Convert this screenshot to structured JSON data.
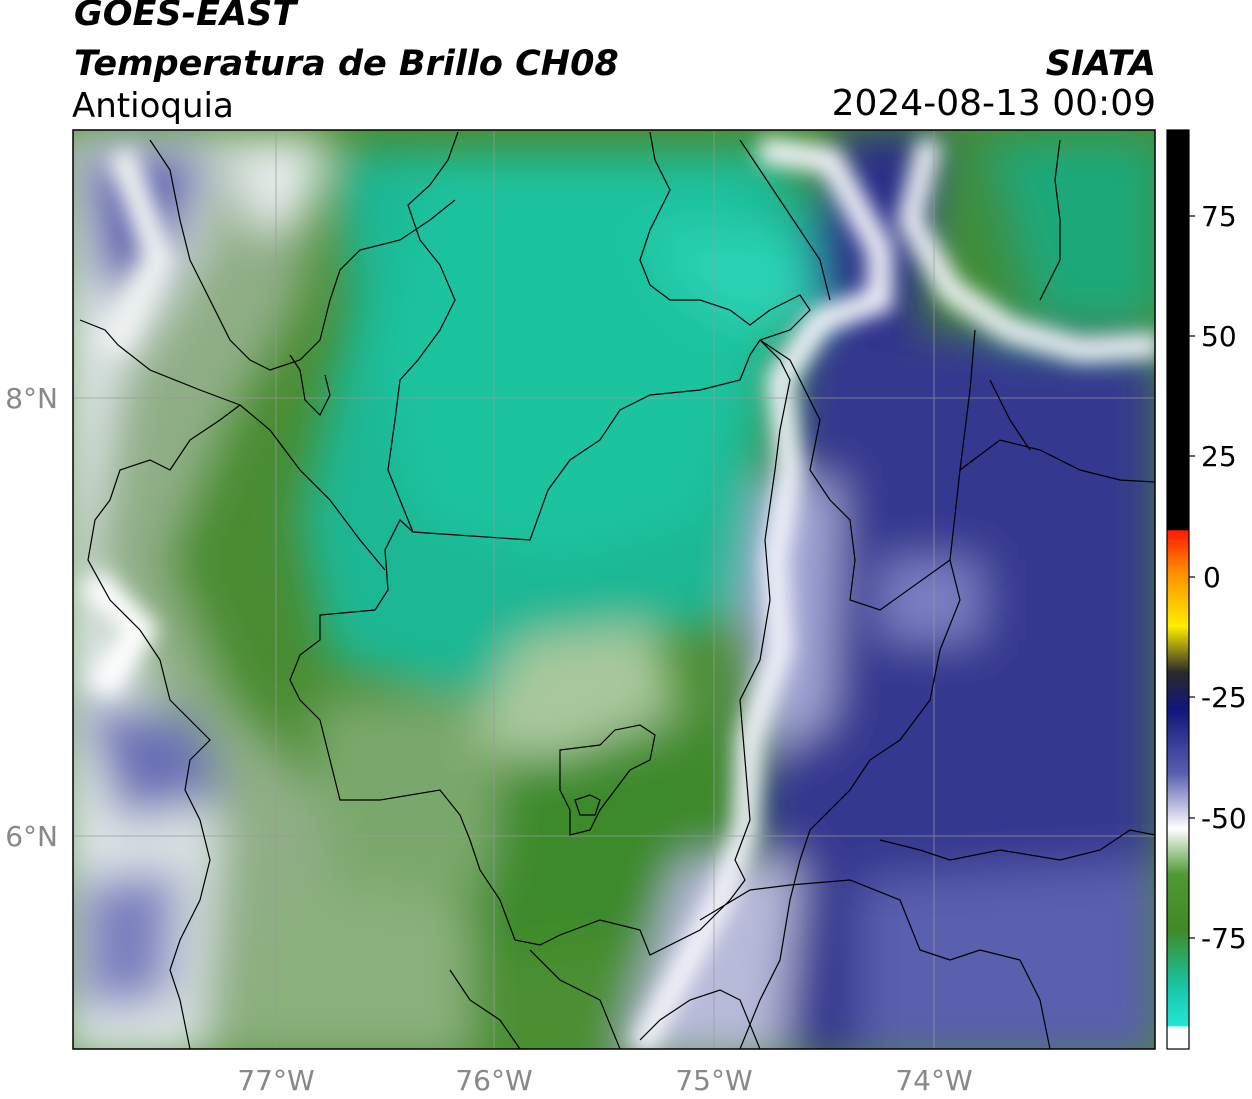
{
  "header": {
    "satellite": "GOES-EAST",
    "product": "Temperatura de Brillo CH08",
    "region": "Antioquia",
    "organization": "SIATA",
    "datetime": "2024-08-13 00:09"
  },
  "map": {
    "lon_range": [
      -77.95,
      -73.0
    ],
    "lat_range": [
      5.05,
      9.25
    ],
    "x_ticks": [
      "77°W",
      "76°W",
      "75°W",
      "74°W"
    ],
    "y_ticks": [
      "8°N",
      "6°N"
    ],
    "gridlines": true
  },
  "colorbar": {
    "range": [
      -96,
      92
    ],
    "ticks": [
      "75",
      "50",
      "25",
      "0",
      "-25",
      "-50",
      "-75"
    ],
    "colors": {
      "black": "#000000",
      "red": "#ff1a00",
      "orange": "#ff8c00",
      "yellow": "#ffee00",
      "navy": "#10167a",
      "blue": "#3a3f9e",
      "white": "#ffffff",
      "green": "#3f8a25",
      "teal": "#18c4a4",
      "cyan": "#22e6d8"
    }
  }
}
